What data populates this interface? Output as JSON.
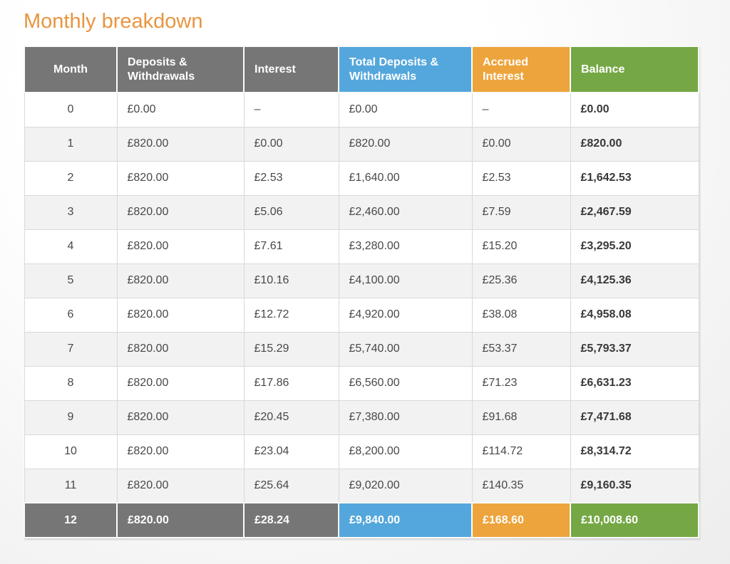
{
  "page": {
    "title": "Monthly breakdown"
  },
  "colors": {
    "title_orange": "#e8953e",
    "header_gray": "#767676",
    "header_blue": "#54a7dc",
    "header_orange": "#eda43c",
    "header_green": "#75a845",
    "row_stripe": "#f2f2f2",
    "cell_border": "#d9d9d9"
  },
  "table": {
    "columns": [
      {
        "label": "Month",
        "color": "#767676"
      },
      {
        "label": "Deposits & Withdrawals",
        "color": "#767676"
      },
      {
        "label": "Interest",
        "color": "#767676"
      },
      {
        "label": "Total Deposits & Withdrawals",
        "color": "#54a7dc"
      },
      {
        "label": "Accrued Interest",
        "color": "#eda43c"
      },
      {
        "label": "Balance",
        "color": "#75a845"
      }
    ],
    "rows": [
      [
        "0",
        "£0.00",
        "–",
        "£0.00",
        "–",
        "£0.00"
      ],
      [
        "1",
        "£820.00",
        "£0.00",
        "£820.00",
        "£0.00",
        "£820.00"
      ],
      [
        "2",
        "£820.00",
        "£2.53",
        "£1,640.00",
        "£2.53",
        "£1,642.53"
      ],
      [
        "3",
        "£820.00",
        "£5.06",
        "£2,460.00",
        "£7.59",
        "£2,467.59"
      ],
      [
        "4",
        "£820.00",
        "£7.61",
        "£3,280.00",
        "£15.20",
        "£3,295.20"
      ],
      [
        "5",
        "£820.00",
        "£10.16",
        "£4,100.00",
        "£25.36",
        "£4,125.36"
      ],
      [
        "6",
        "£820.00",
        "£12.72",
        "£4,920.00",
        "£38.08",
        "£4,958.08"
      ],
      [
        "7",
        "£820.00",
        "£15.29",
        "£5,740.00",
        "£53.37",
        "£5,793.37"
      ],
      [
        "8",
        "£820.00",
        "£17.86",
        "£6,560.00",
        "£71.23",
        "£6,631.23"
      ],
      [
        "9",
        "£820.00",
        "£20.45",
        "£7,380.00",
        "£91.68",
        "£7,471.68"
      ],
      [
        "10",
        "£820.00",
        "£23.04",
        "£8,200.00",
        "£114.72",
        "£8,314.72"
      ],
      [
        "11",
        "£820.00",
        "£25.64",
        "£9,020.00",
        "£140.35",
        "£9,160.35"
      ],
      [
        "12",
        "£820.00",
        "£28.24",
        "£9,840.00",
        "£168.60",
        "£10,008.60"
      ]
    ]
  }
}
